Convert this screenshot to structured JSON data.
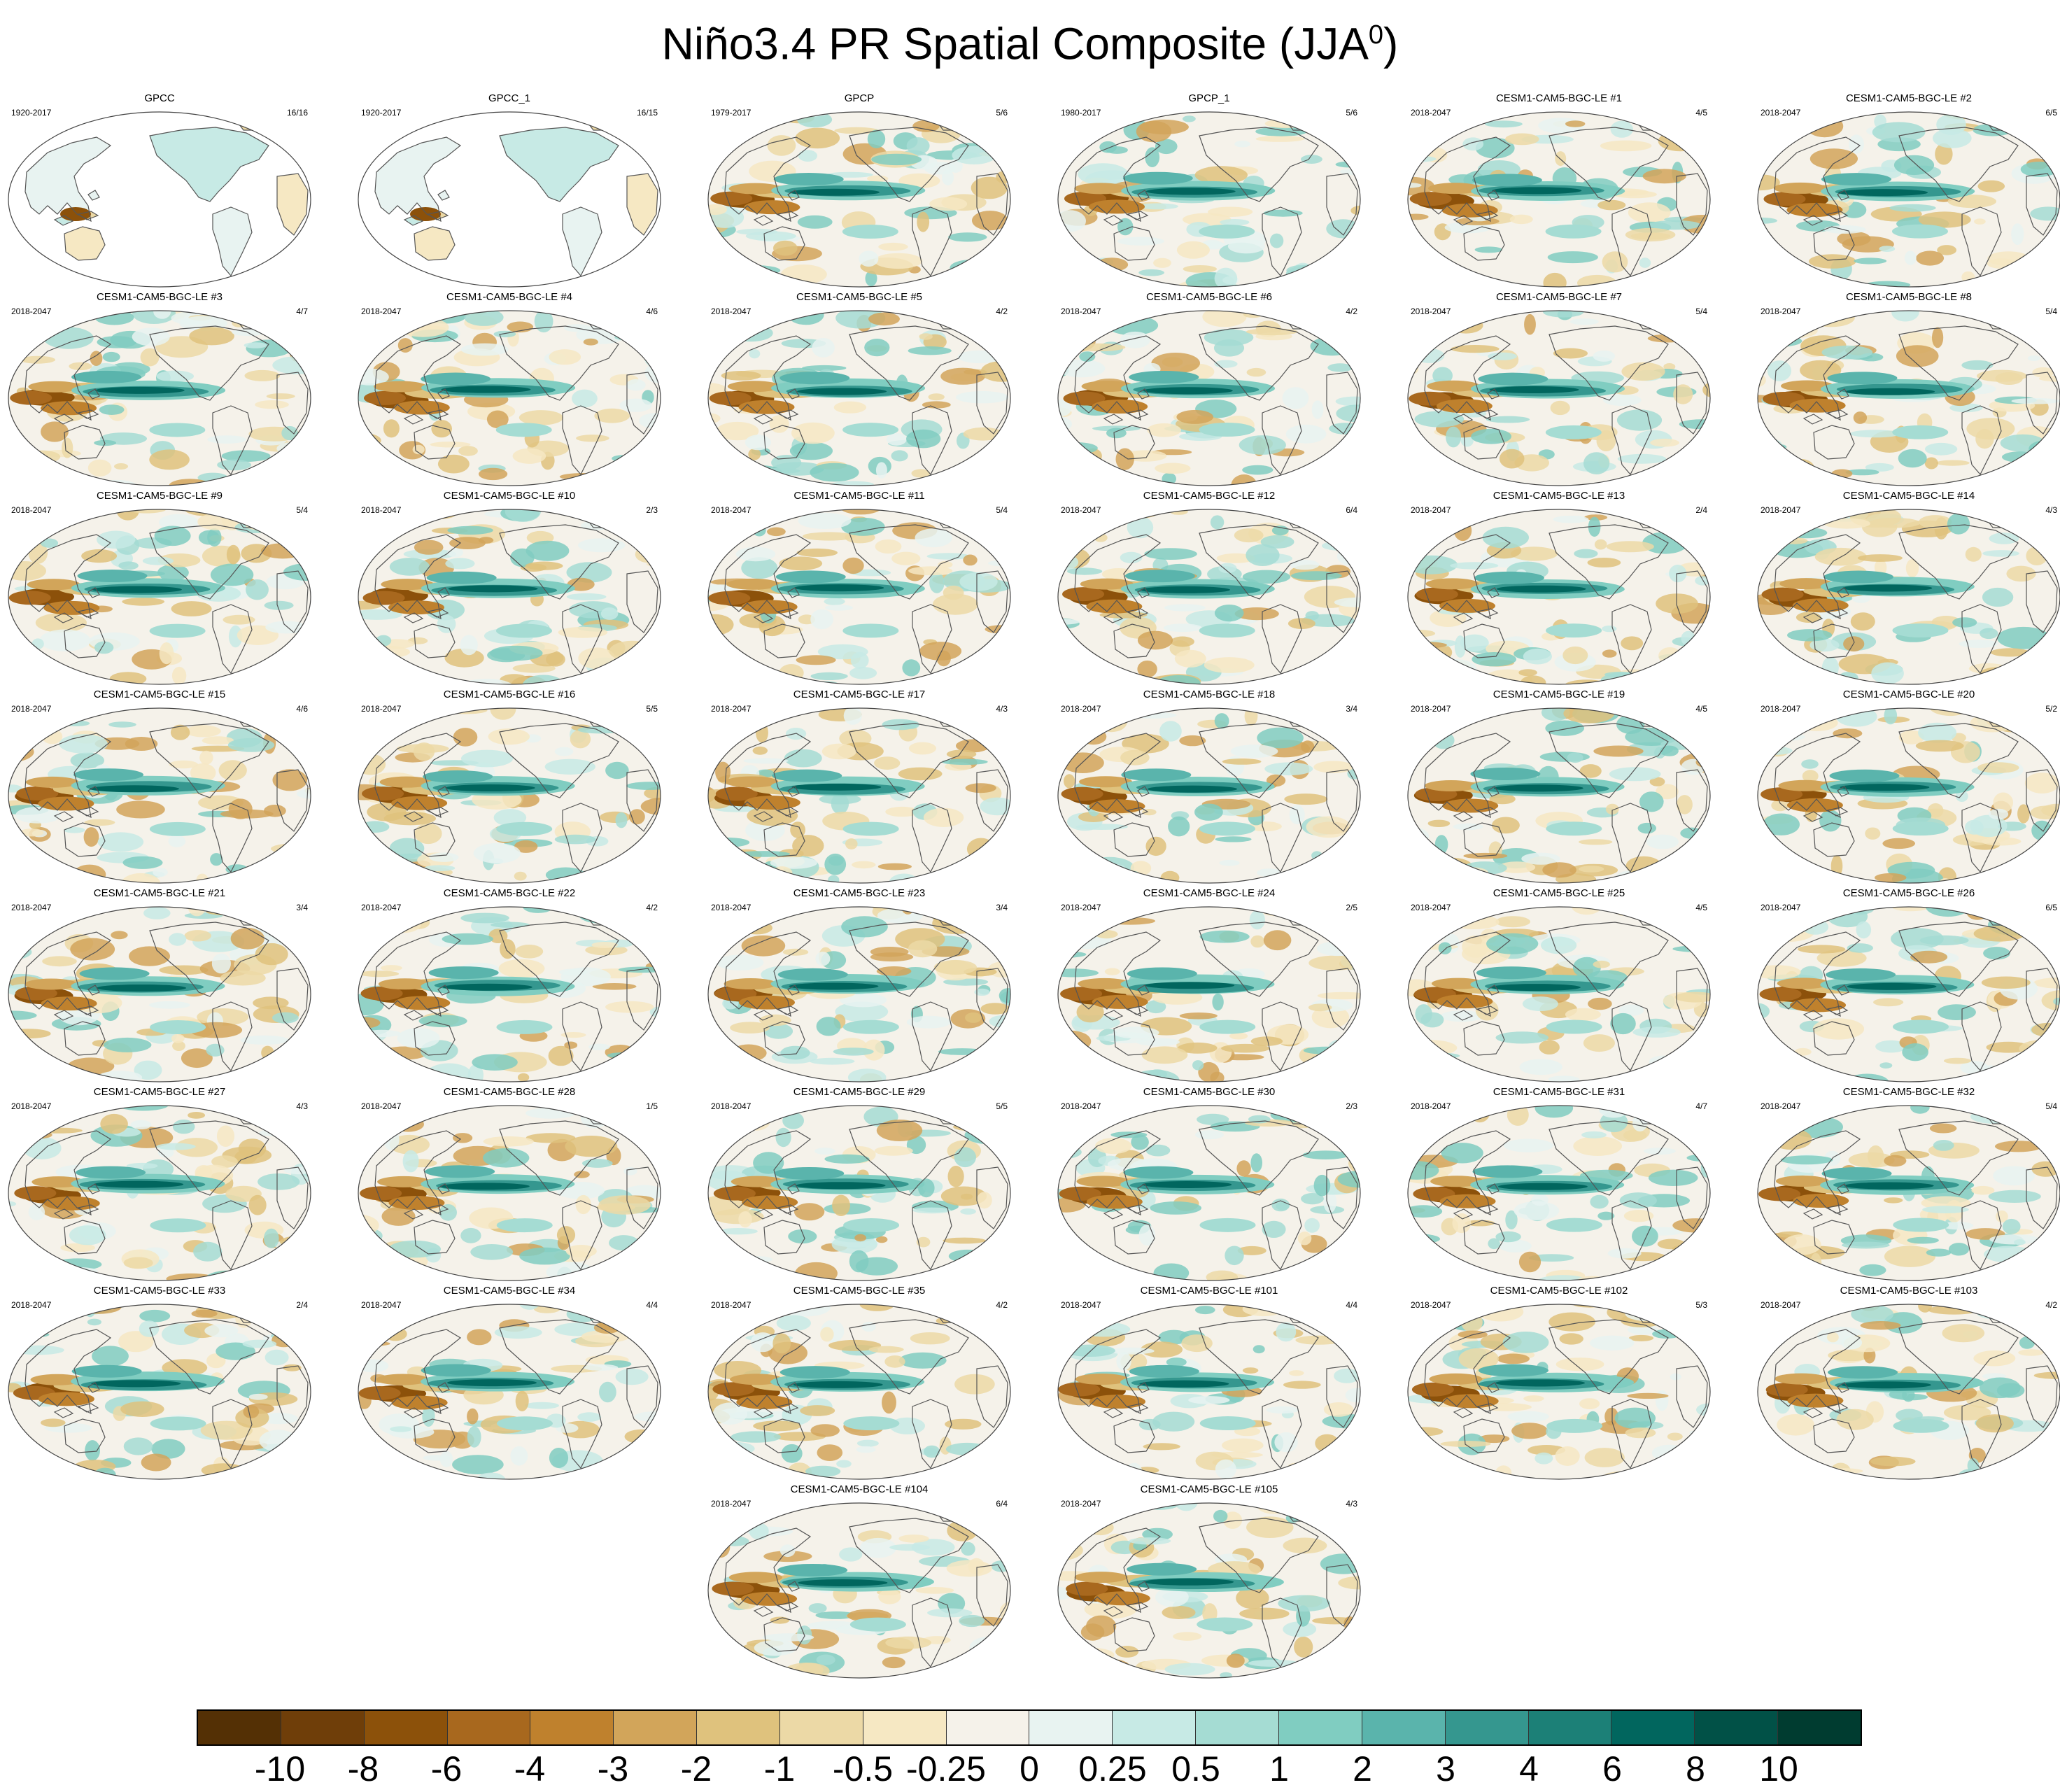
{
  "title": "Niño3.4 PR Spatial Composite (JJA",
  "title_sup": "0",
  "title_close": ")",
  "panels": [
    {
      "title": "GPCC",
      "period": "1920-2017",
      "count": "16/16",
      "style": "land"
    },
    {
      "title": "GPCC_1",
      "period": "1920-2017",
      "count": "16/15",
      "style": "land"
    },
    {
      "title": "GPCP",
      "period": "1979-2017",
      "count": "5/6",
      "style": "full"
    },
    {
      "title": "GPCP_1",
      "period": "1980-2017",
      "count": "5/6",
      "style": "full"
    },
    {
      "title": "CESM1-CAM5-BGC-LE #1",
      "period": "2018-2047",
      "count": "4/5",
      "style": "full"
    },
    {
      "title": "CESM1-CAM5-BGC-LE #2",
      "period": "2018-2047",
      "count": "6/5",
      "style": "full"
    },
    {
      "title": "CESM1-CAM5-BGC-LE #3",
      "period": "2018-2047",
      "count": "4/7",
      "style": "full"
    },
    {
      "title": "CESM1-CAM5-BGC-LE #4",
      "period": "2018-2047",
      "count": "4/6",
      "style": "full"
    },
    {
      "title": "CESM1-CAM5-BGC-LE #5",
      "period": "2018-2047",
      "count": "4/2",
      "style": "full"
    },
    {
      "title": "CESM1-CAM5-BGC-LE #6",
      "period": "2018-2047",
      "count": "4/2",
      "style": "full"
    },
    {
      "title": "CESM1-CAM5-BGC-LE #7",
      "period": "2018-2047",
      "count": "5/4",
      "style": "full"
    },
    {
      "title": "CESM1-CAM5-BGC-LE #8",
      "period": "2018-2047",
      "count": "5/4",
      "style": "full"
    },
    {
      "title": "CESM1-CAM5-BGC-LE #9",
      "period": "2018-2047",
      "count": "5/4",
      "style": "full"
    },
    {
      "title": "CESM1-CAM5-BGC-LE #10",
      "period": "2018-2047",
      "count": "2/3",
      "style": "full"
    },
    {
      "title": "CESM1-CAM5-BGC-LE #11",
      "period": "2018-2047",
      "count": "5/4",
      "style": "full"
    },
    {
      "title": "CESM1-CAM5-BGC-LE #12",
      "period": "2018-2047",
      "count": "6/4",
      "style": "full"
    },
    {
      "title": "CESM1-CAM5-BGC-LE #13",
      "period": "2018-2047",
      "count": "2/4",
      "style": "full"
    },
    {
      "title": "CESM1-CAM5-BGC-LE #14",
      "period": "2018-2047",
      "count": "4/3",
      "style": "full"
    },
    {
      "title": "CESM1-CAM5-BGC-LE #15",
      "period": "2018-2047",
      "count": "4/6",
      "style": "full"
    },
    {
      "title": "CESM1-CAM5-BGC-LE #16",
      "period": "2018-2047",
      "count": "5/5",
      "style": "full"
    },
    {
      "title": "CESM1-CAM5-BGC-LE #17",
      "period": "2018-2047",
      "count": "4/3",
      "style": "full"
    },
    {
      "title": "CESM1-CAM5-BGC-LE #18",
      "period": "2018-2047",
      "count": "3/4",
      "style": "full"
    },
    {
      "title": "CESM1-CAM5-BGC-LE #19",
      "period": "2018-2047",
      "count": "4/5",
      "style": "full"
    },
    {
      "title": "CESM1-CAM5-BGC-LE #20",
      "period": "2018-2047",
      "count": "5/2",
      "style": "full"
    },
    {
      "title": "CESM1-CAM5-BGC-LE #21",
      "period": "2018-2047",
      "count": "3/4",
      "style": "full"
    },
    {
      "title": "CESM1-CAM5-BGC-LE #22",
      "period": "2018-2047",
      "count": "4/2",
      "style": "full"
    },
    {
      "title": "CESM1-CAM5-BGC-LE #23",
      "period": "2018-2047",
      "count": "3/4",
      "style": "full"
    },
    {
      "title": "CESM1-CAM5-BGC-LE #24",
      "period": "2018-2047",
      "count": "2/5",
      "style": "full"
    },
    {
      "title": "CESM1-CAM5-BGC-LE #25",
      "period": "2018-2047",
      "count": "4/5",
      "style": "full"
    },
    {
      "title": "CESM1-CAM5-BGC-LE #26",
      "period": "2018-2047",
      "count": "6/5",
      "style": "full"
    },
    {
      "title": "CESM1-CAM5-BGC-LE #27",
      "period": "2018-2047",
      "count": "4/3",
      "style": "full"
    },
    {
      "title": "CESM1-CAM5-BGC-LE #28",
      "period": "2018-2047",
      "count": "1/5",
      "style": "full"
    },
    {
      "title": "CESM1-CAM5-BGC-LE #29",
      "period": "2018-2047",
      "count": "5/5",
      "style": "full"
    },
    {
      "title": "CESM1-CAM5-BGC-LE #30",
      "period": "2018-2047",
      "count": "2/3",
      "style": "full"
    },
    {
      "title": "CESM1-CAM5-BGC-LE #31",
      "period": "2018-2047",
      "count": "4/7",
      "style": "full"
    },
    {
      "title": "CESM1-CAM5-BGC-LE #32",
      "period": "2018-2047",
      "count": "5/4",
      "style": "full"
    },
    {
      "title": "CESM1-CAM5-BGC-LE #33",
      "period": "2018-2047",
      "count": "2/4",
      "style": "full"
    },
    {
      "title": "CESM1-CAM5-BGC-LE #34",
      "period": "2018-2047",
      "count": "4/4",
      "style": "full"
    },
    {
      "title": "CESM1-CAM5-BGC-LE #35",
      "period": "2018-2047",
      "count": "4/2",
      "style": "full"
    },
    {
      "title": "CESM1-CAM5-BGC-LE #101",
      "period": "2018-2047",
      "count": "4/4",
      "style": "full"
    },
    {
      "title": "CESM1-CAM5-BGC-LE #102",
      "period": "2018-2047",
      "count": "5/3",
      "style": "full"
    },
    {
      "title": "CESM1-CAM5-BGC-LE #103",
      "period": "2018-2047",
      "count": "4/2",
      "style": "full"
    },
    {
      "title": "CESM1-CAM5-BGC-LE #104",
      "period": "2018-2047",
      "count": "6/4",
      "style": "full"
    },
    {
      "title": "CESM1-CAM5-BGC-LE #105",
      "period": "2018-2047",
      "count": "4/3",
      "style": "full"
    }
  ],
  "colorbar": {
    "colors": [
      "#543005",
      "#6f3e09",
      "#8c510a",
      "#a8681e",
      "#bf812d",
      "#d2a55a",
      "#dfc27d",
      "#ecd9a6",
      "#f6e8c3",
      "#f5f2ea",
      "#e8f3f1",
      "#c7eae5",
      "#a5dcd3",
      "#80cdc1",
      "#5ab4ac",
      "#35978f",
      "#1c8077",
      "#01665e",
      "#015147",
      "#003c30"
    ],
    "labels": [
      "-10",
      "-8",
      "-6",
      "-4",
      "-3",
      "-2",
      "-1",
      "-0.5",
      "-0.25",
      "0",
      "0.25",
      "0.5",
      "1",
      "2",
      "3",
      "4",
      "6",
      "8",
      "10"
    ]
  }
}
